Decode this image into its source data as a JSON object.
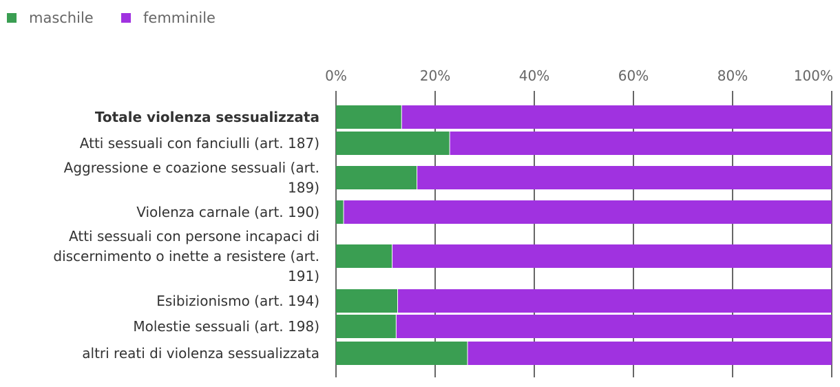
{
  "chart_data": {
    "type": "bar",
    "orientation": "horizontal",
    "stacked": true,
    "percent": true,
    "title": "",
    "xlabel": "",
    "ylabel": "",
    "xlim": [
      0,
      100
    ],
    "x_ticks": [
      "0%",
      "20%",
      "40%",
      "60%",
      "80%",
      "100%"
    ],
    "legend_position": "top-left",
    "grid": true,
    "categories": [
      {
        "lines": [
          "Totale violenza sessualizzata"
        ],
        "bold": true
      },
      {
        "lines": [
          "Atti sessuali con fanciulli (art. 187)"
        ],
        "bold": false
      },
      {
        "lines": [
          "Aggressione e coazione sessuali (art.",
          "189)"
        ],
        "bold": false
      },
      {
        "lines": [
          "Violenza carnale (art. 190)"
        ],
        "bold": false
      },
      {
        "lines": [
          "Atti sessuali con persone incapaci di",
          "discernimento o inette a resistere (art.",
          "191)"
        ],
        "bold": false
      },
      {
        "lines": [
          "Esibizionismo (art. 194)"
        ],
        "bold": false
      },
      {
        "lines": [
          "Molestie sessuali (art. 198)"
        ],
        "bold": false
      },
      {
        "lines": [
          "altri reati di violenza sessualizzata"
        ],
        "bold": false
      }
    ],
    "series": [
      {
        "name": "maschile",
        "color": "#3a9e52",
        "values": [
          13.3,
          23.0,
          16.4,
          1.6,
          11.4,
          12.5,
          12.2,
          26.6
        ]
      },
      {
        "name": "femminile",
        "color": "#a032e0",
        "values": [
          86.7,
          77.0,
          83.6,
          98.4,
          88.6,
          87.5,
          87.8,
          73.4
        ]
      }
    ]
  }
}
